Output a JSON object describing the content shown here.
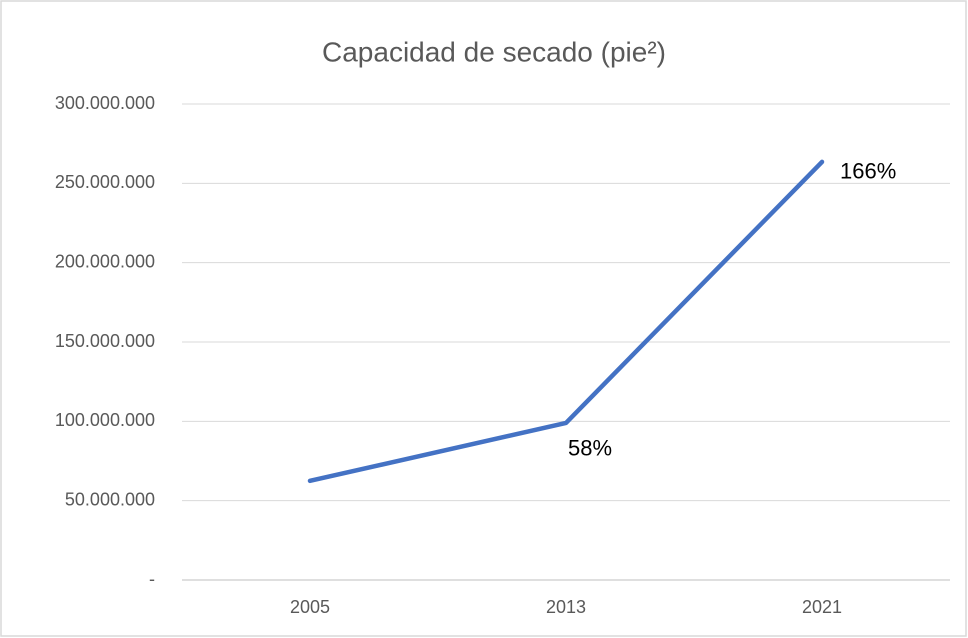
{
  "chart_data": {
    "type": "line",
    "title": "Capacidad de secado (pie²)",
    "categories": [
      "2005",
      "2013",
      "2021"
    ],
    "series": [
      {
        "color": "#4472c4",
        "values": [
          62500000,
          99000000,
          263500000
        ]
      }
    ],
    "annotations": [
      null,
      "58%",
      "166%"
    ],
    "ylim": [
      0,
      300000000
    ],
    "yticks": [
      {
        "value": 0,
        "label": "-"
      },
      {
        "value": 50000000,
        "label": "50.000.000"
      },
      {
        "value": 100000000,
        "label": "100.000.000"
      },
      {
        "value": 150000000,
        "label": "150.000.000"
      },
      {
        "value": 200000000,
        "label": "200.000.000"
      },
      {
        "value": 250000000,
        "label": "250.000.000"
      },
      {
        "value": 300000000,
        "label": "300.000.000"
      }
    ],
    "grid": true
  }
}
